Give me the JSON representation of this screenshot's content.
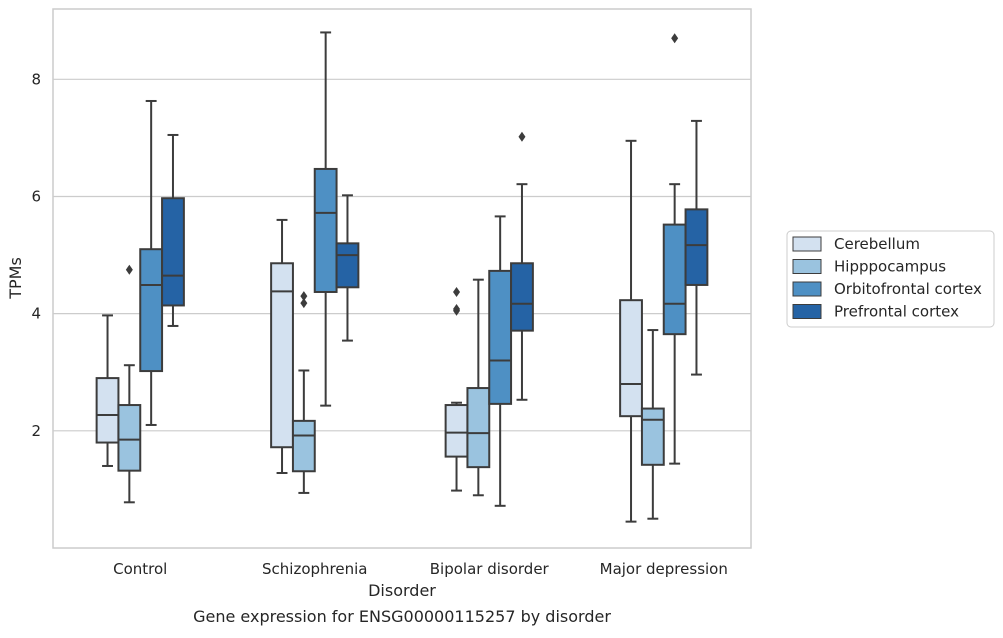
{
  "chart_data": {
    "type": "boxplot",
    "caption": "Gene expression for ENSG00000115257 by disorder",
    "xlabel": "Disorder",
    "ylabel": "TPMs",
    "ylim": [
      0,
      9.2
    ],
    "yticks": [
      2,
      4,
      6,
      8
    ],
    "grid": "horizontal",
    "legend_position": "right",
    "categories": [
      "Control",
      "Schizophrenia",
      "Bipolar disorder",
      "Major depression"
    ],
    "series": [
      {
        "name": "Cerebellum",
        "color": "#d3e1f0",
        "boxes": [
          {
            "min": 1.4,
            "q1": 1.8,
            "median": 2.27,
            "q3": 2.9,
            "max": 3.97,
            "outliers": []
          },
          {
            "min": 1.28,
            "q1": 1.72,
            "median": 4.38,
            "q3": 4.86,
            "max": 5.6,
            "outliers": []
          },
          {
            "min": 0.98,
            "q1": 1.56,
            "median": 1.97,
            "q3": 2.44,
            "max": 2.48,
            "outliers": [
              4.05,
              4.08,
              4.37
            ]
          },
          {
            "min": 0.45,
            "q1": 2.25,
            "median": 2.8,
            "q3": 4.23,
            "max": 6.95,
            "outliers": []
          }
        ]
      },
      {
        "name": "Hipppocampus",
        "color": "#9ac3df",
        "boxes": [
          {
            "min": 0.78,
            "q1": 1.32,
            "median": 1.85,
            "q3": 2.44,
            "max": 3.12,
            "outliers": [
              4.75
            ]
          },
          {
            "min": 0.94,
            "q1": 1.31,
            "median": 1.92,
            "q3": 2.17,
            "max": 3.03,
            "outliers": [
              4.18,
              4.3
            ]
          },
          {
            "min": 0.9,
            "q1": 1.38,
            "median": 1.96,
            "q3": 2.73,
            "max": 4.58,
            "outliers": []
          },
          {
            "min": 0.5,
            "q1": 1.42,
            "median": 2.19,
            "q3": 2.38,
            "max": 3.72,
            "outliers": []
          }
        ]
      },
      {
        "name": "Orbitofrontal cortex",
        "color": "#4e90c4",
        "boxes": [
          {
            "min": 2.1,
            "q1": 3.02,
            "median": 4.49,
            "q3": 5.1,
            "max": 7.63,
            "outliers": []
          },
          {
            "min": 2.43,
            "q1": 4.37,
            "median": 5.72,
            "q3": 6.47,
            "max": 8.8,
            "outliers": []
          },
          {
            "min": 0.72,
            "q1": 2.46,
            "median": 3.2,
            "q3": 4.73,
            "max": 5.66,
            "outliers": []
          },
          {
            "min": 1.44,
            "q1": 3.65,
            "median": 4.17,
            "q3": 5.52,
            "max": 6.21,
            "outliers": [
              8.7
            ]
          }
        ]
      },
      {
        "name": "Prefrontal cortex",
        "color": "#2563a5",
        "boxes": [
          {
            "min": 3.79,
            "q1": 4.14,
            "median": 4.65,
            "q3": 5.97,
            "max": 7.05,
            "outliers": []
          },
          {
            "min": 3.54,
            "q1": 4.45,
            "median": 5.0,
            "q3": 5.2,
            "max": 6.02,
            "outliers": []
          },
          {
            "min": 2.53,
            "q1": 3.71,
            "median": 4.17,
            "q3": 4.86,
            "max": 6.21,
            "outliers": [
              7.02
            ]
          },
          {
            "min": 2.96,
            "q1": 4.49,
            "median": 5.17,
            "q3": 5.78,
            "max": 7.29,
            "outliers": []
          }
        ]
      }
    ]
  }
}
